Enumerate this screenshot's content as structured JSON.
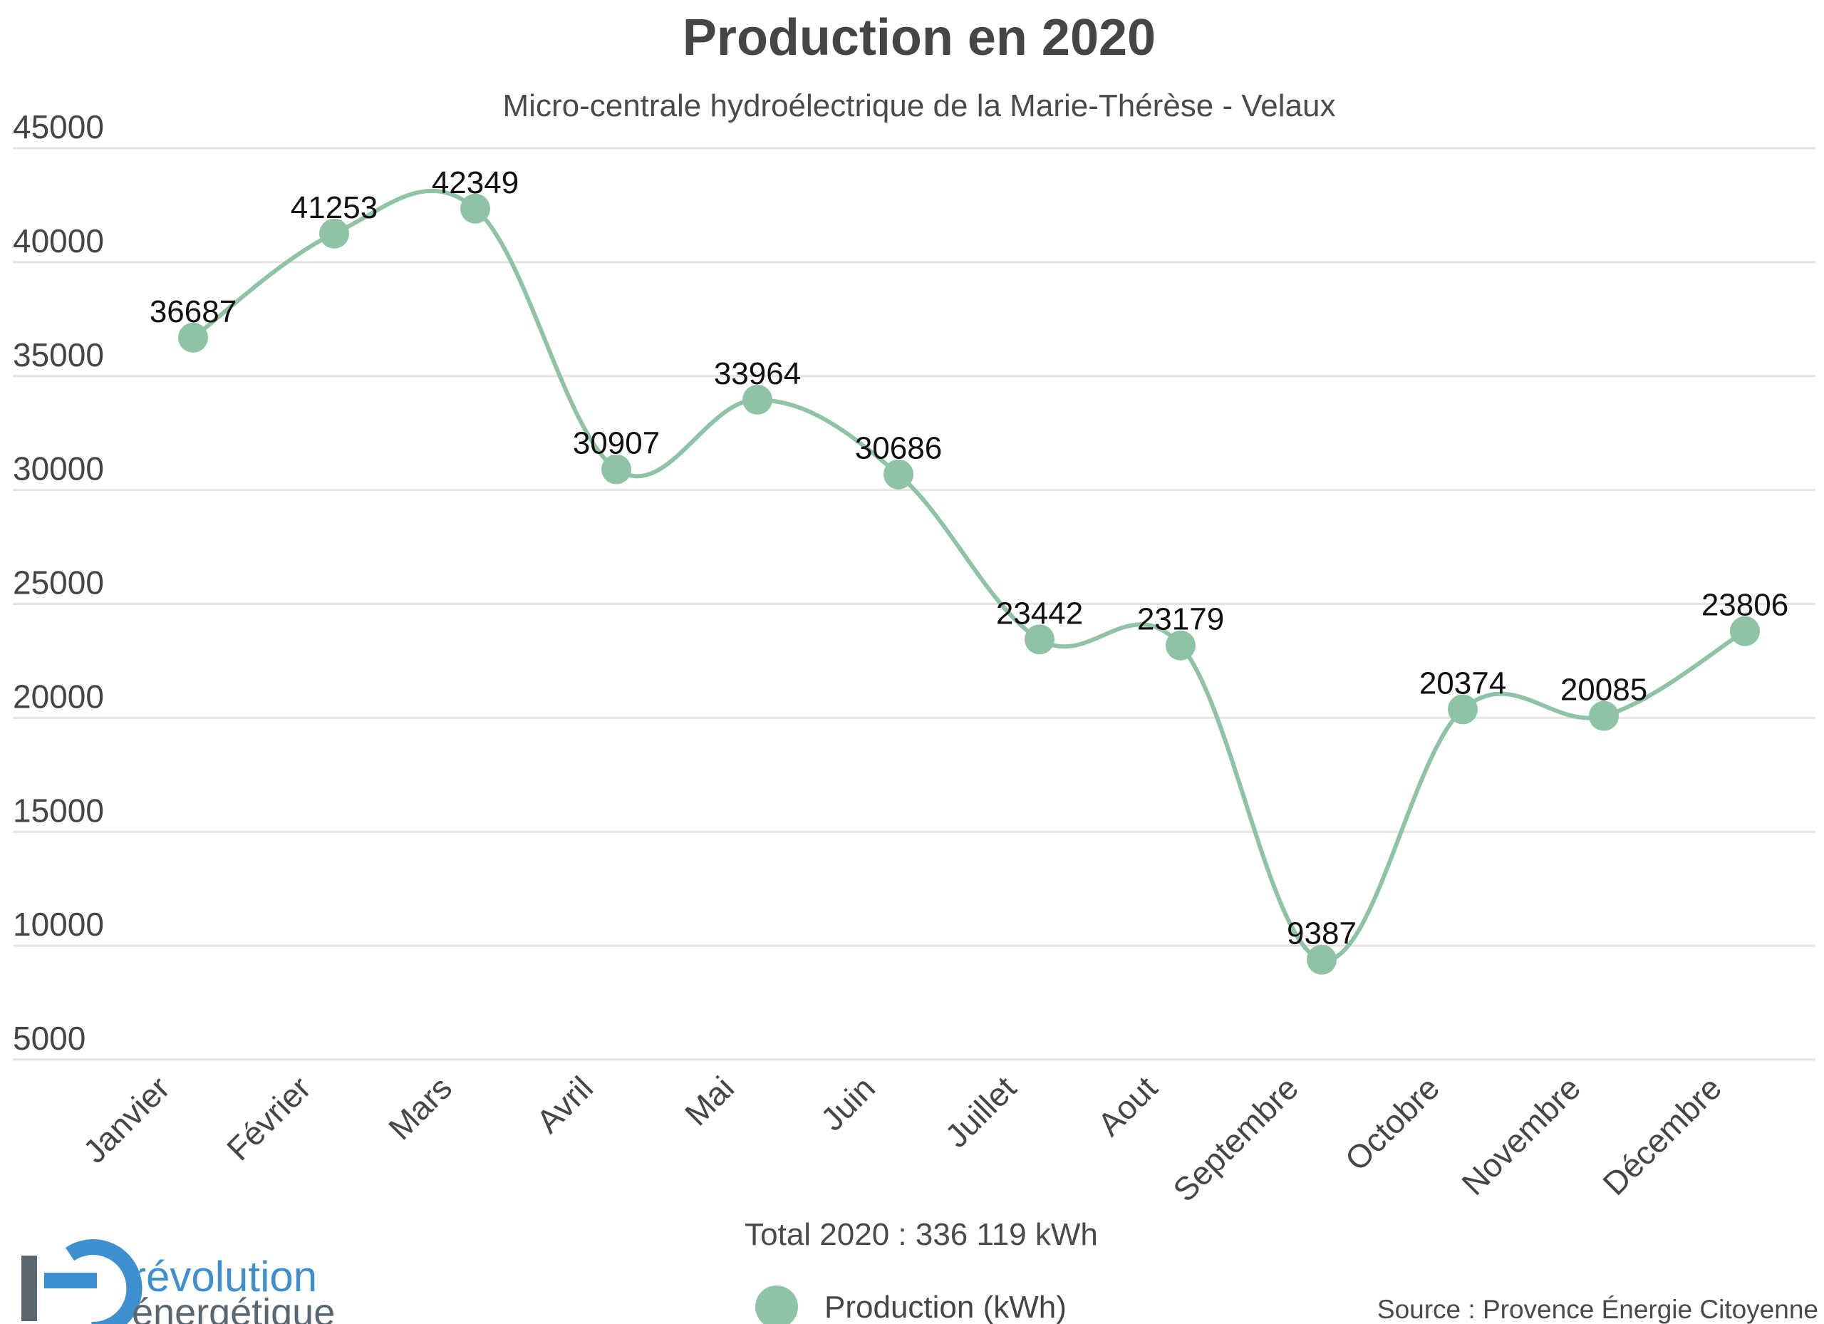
{
  "chart_data": {
    "type": "line",
    "title": "Production en 2020",
    "subtitle": "Micro-centrale hydroélectrique de la Marie-Thérèse - Velaux",
    "categories": [
      "Janvier",
      "Février",
      "Mars",
      "Avril",
      "Mai",
      "Juin",
      "Juillet",
      "Aout",
      "Septembre",
      "Octobre",
      "Novembre",
      "Décembre"
    ],
    "series": [
      {
        "name": "Production (kWh)",
        "values": [
          36687,
          41253,
          42349,
          30907,
          33964,
          30686,
          23442,
          23179,
          9387,
          20374,
          20085,
          23806
        ],
        "color": "#8fc3a5"
      }
    ],
    "yticks": [
      45000,
      40000,
      35000,
      30000,
      25000,
      20000,
      15000,
      10000,
      5000
    ],
    "ylim": [
      5000,
      45000
    ],
    "xlabel": "",
    "ylabel": "",
    "grid": true,
    "curve": "smooth",
    "data_labels": true,
    "legend": "bottom-center"
  },
  "footer": {
    "total": "Total 2020 : 336 119 kWh",
    "source": "Source : Provence Énergie Citoyenne"
  },
  "logo": {
    "line1": "révolution",
    "line2": "énergétique",
    "icon": "e-logo-icon",
    "colors": {
      "primary": "#3d8fcf",
      "dark": "#5a6670"
    }
  },
  "colors": {
    "grid": "#e4e4e4",
    "text": "#454545"
  }
}
